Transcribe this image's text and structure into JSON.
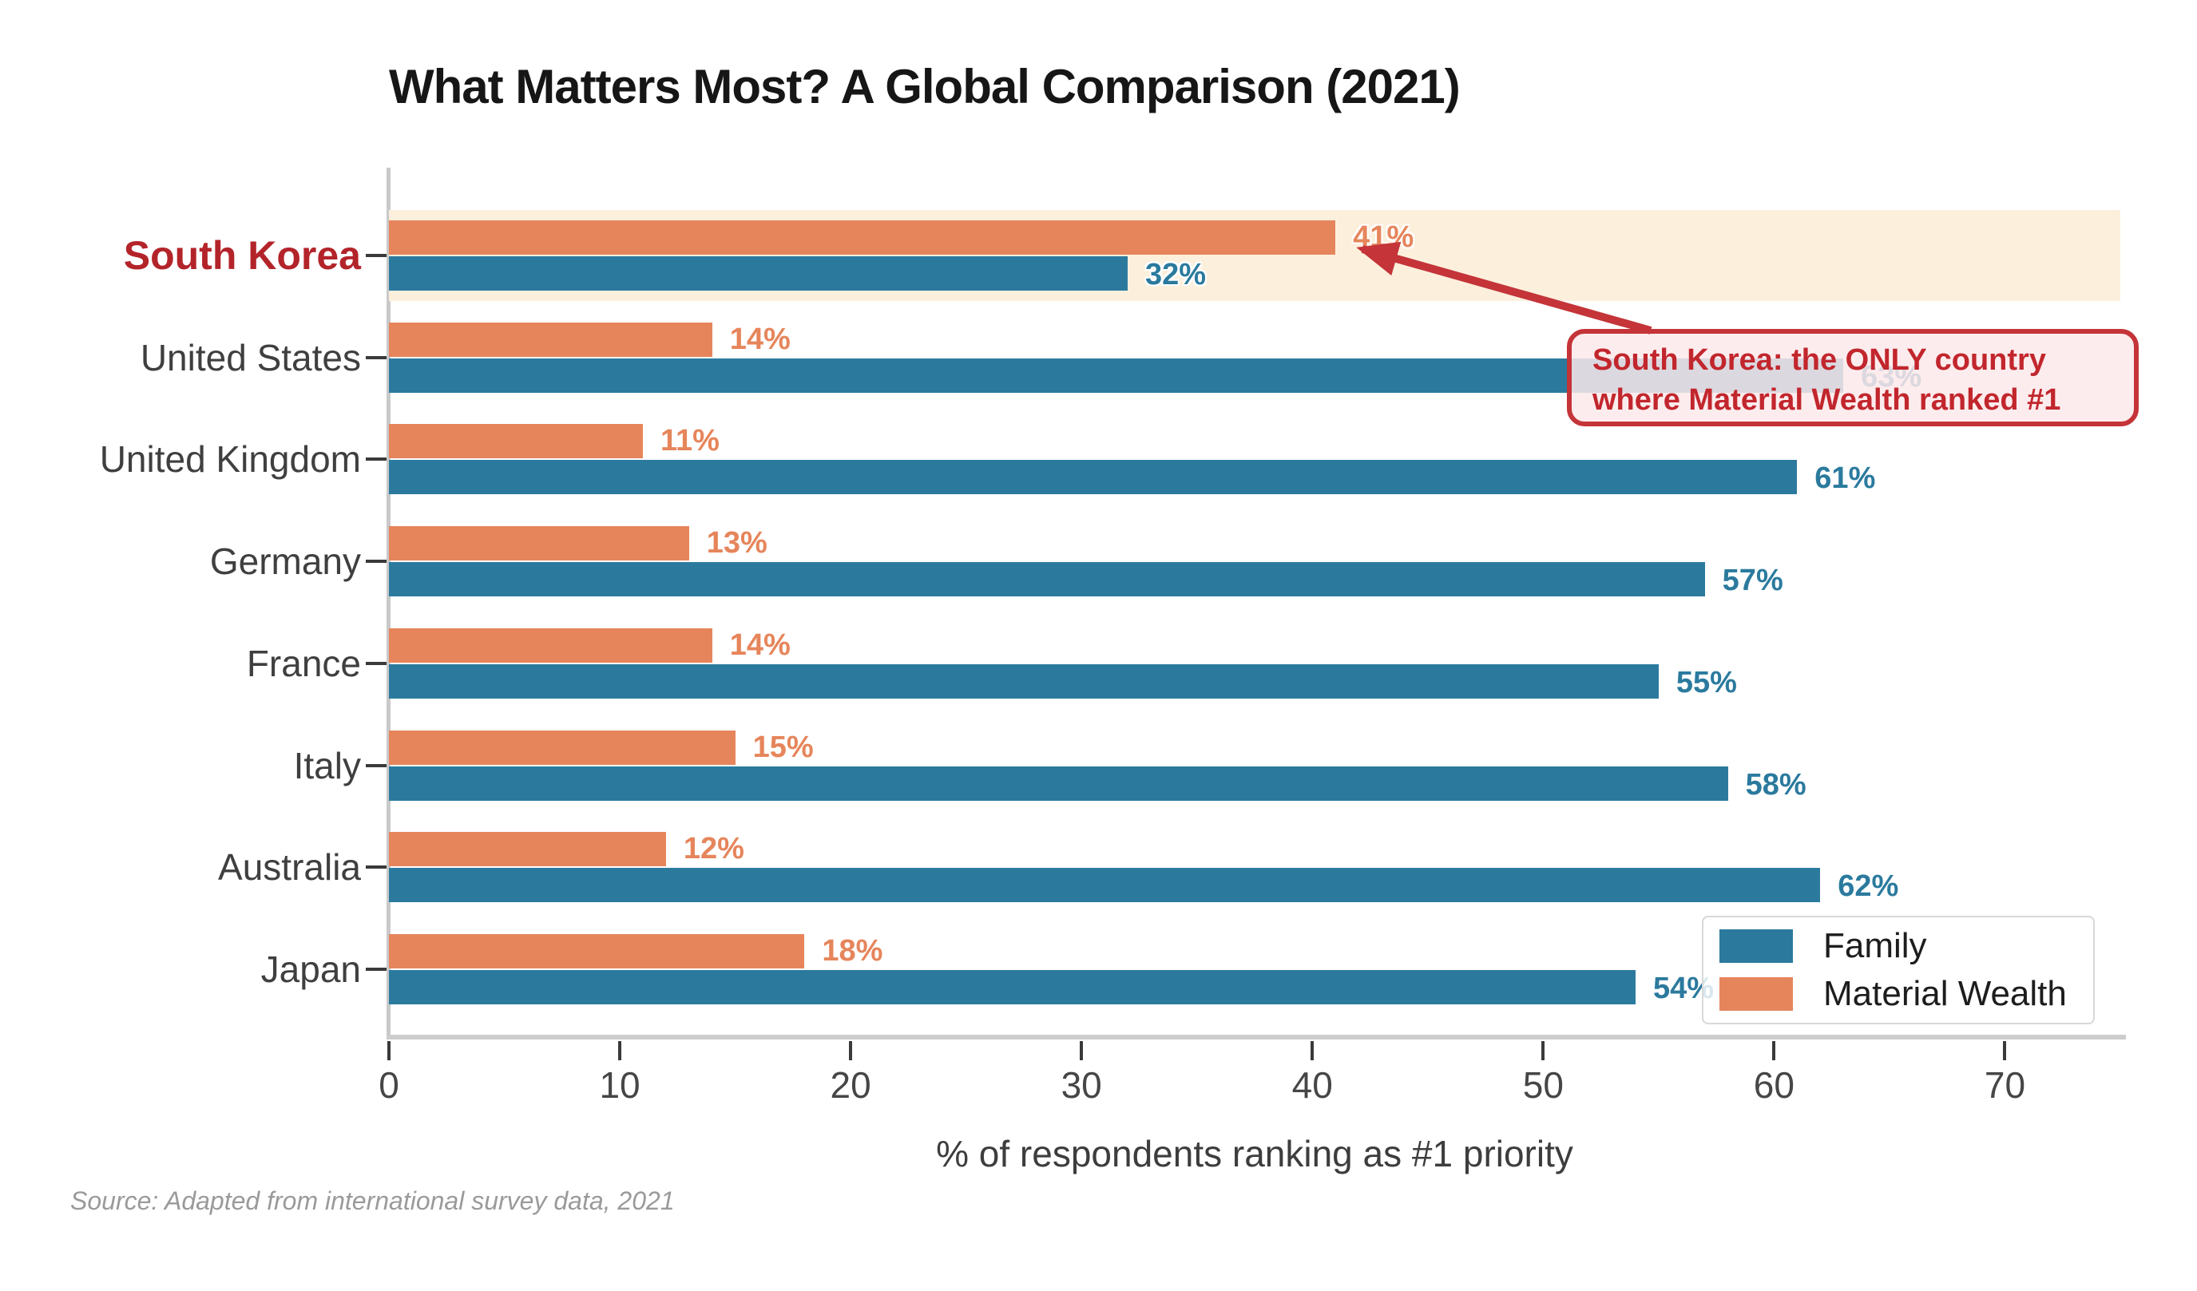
{
  "title": "What Matters Most? A Global Comparison (2021)",
  "xaxis_title": "% of respondents ranking as #1 priority",
  "source": "Source: Adapted from international survey data, 2021",
  "annotation": {
    "line1": "South Korea: the ONLY country",
    "line2": "where Material Wealth ranked #1"
  },
  "legend": {
    "items": [
      {
        "label": "Family",
        "color": "#2b7a9e"
      },
      {
        "label": "Material Wealth",
        "color": "#e6855b"
      }
    ]
  },
  "colors": {
    "family_bar": "#2b7a9e",
    "material_wealth_bar": "#e6855b",
    "family_value_label": "#2b7a9e",
    "material_wealth_value_label": "#e6855b",
    "highlight_band": "#fcf0dd",
    "highlight_country_label": "#b3242a",
    "annotation_red": "#c43438",
    "annotation_text": "#c2262d",
    "country_label": "#3f3f3f"
  },
  "chart_data": {
    "type": "bar",
    "orientation": "horizontal",
    "title": "What Matters Most? A Global Comparison (2021)",
    "xlabel": "% of respondents ranking as #1 priority",
    "categories": [
      "South Korea",
      "United States",
      "United Kingdom",
      "Germany",
      "France",
      "Italy",
      "Australia",
      "Japan"
    ],
    "series": [
      {
        "name": "Material Wealth",
        "color": "#e6855b",
        "values": [
          41,
          14,
          11,
          13,
          14,
          15,
          12,
          18
        ]
      },
      {
        "name": "Family",
        "color": "#2b7a9e",
        "values": [
          32,
          63,
          61,
          57,
          55,
          58,
          62,
          54
        ]
      }
    ],
    "value_suffix": "%",
    "xlim": [
      0,
      75
    ],
    "xticks": [
      0,
      10,
      20,
      30,
      40,
      50,
      60,
      70
    ],
    "grid": false,
    "legend_position": "lower right",
    "highlight_category": "South Korea",
    "annotation_text": "South Korea: the ONLY country where Material Wealth ranked #1",
    "annotation_points_to": {
      "category": "South Korea",
      "series": "Material Wealth",
      "value": 41
    }
  }
}
